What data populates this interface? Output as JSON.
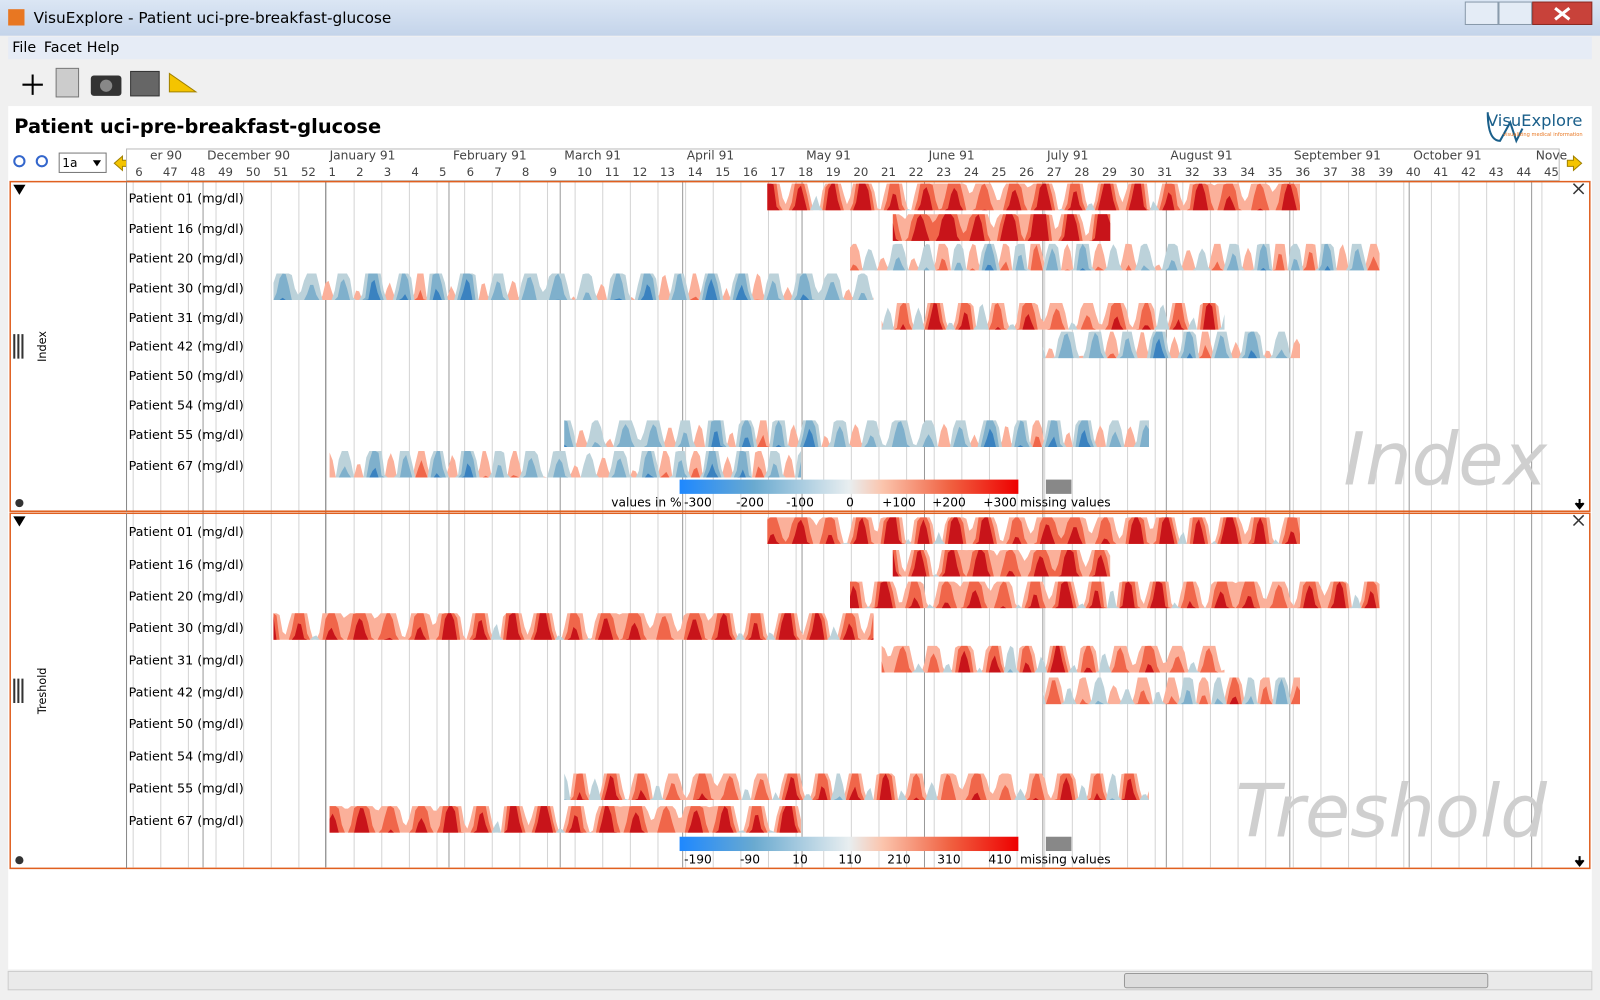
{
  "window": {
    "title": "VisuExplore - Patient uci-pre-breakfast-glucose"
  },
  "menu": [
    "File",
    "Facet",
    "Help"
  ],
  "toolbar": {
    "zoom_level": "1a"
  },
  "header": {
    "title": "Patient uci-pre-breakfast-glucose",
    "logo": "VisuExplore",
    "logo_tagline": "visualizing medical information"
  },
  "timeline": {
    "months": [
      "er 90",
      "December 90",
      "January 91",
      "February 91",
      "March 91",
      "April 91",
      "May 91",
      "June 91",
      "July 91",
      "August 91",
      "September 91",
      "October 91",
      "Nove"
    ],
    "weeks": [
      "6",
      "47",
      "48",
      "49",
      "50",
      "51",
      "52",
      "1",
      "2",
      "3",
      "4",
      "5",
      "6",
      "7",
      "8",
      "9",
      "10",
      "11",
      "12",
      "13",
      "14",
      "15",
      "16",
      "17",
      "18",
      "19",
      "20",
      "21",
      "22",
      "23",
      "24",
      "25",
      "26",
      "27",
      "28",
      "29",
      "30",
      "31",
      "32",
      "33",
      "34",
      "35",
      "36",
      "37",
      "38",
      "39",
      "40",
      "41",
      "42",
      "43",
      "44",
      "45"
    ]
  },
  "panels": [
    {
      "name": "Index",
      "rows": [
        "Patient 01 (mg/dl)",
        "Patient 16 (mg/dl)",
        "Patient 20 (mg/dl)",
        "Patient 30 (mg/dl)",
        "Patient 31 (mg/dl)",
        "Patient 42 (mg/dl)",
        "Patient 50 (mg/dl)",
        "Patient 54 (mg/dl)",
        "Patient 55 (mg/dl)",
        "Patient 67 (mg/dl)"
      ],
      "legend": [
        "values in %",
        "-300",
        "-200",
        "-100",
        "0",
        "+100",
        "+200",
        "+300",
        "missing values"
      ]
    },
    {
      "name": "Treshold",
      "rows": [
        "Patient 01 (mg/dl)",
        "Patient 16 (mg/dl)",
        "Patient 20 (mg/dl)",
        "Patient 30 (mg/dl)",
        "Patient 31 (mg/dl)",
        "Patient 42 (mg/dl)",
        "Patient 50 (mg/dl)",
        "Patient 54 (mg/dl)",
        "Patient 55 (mg/dl)",
        "Patient 67 (mg/dl)"
      ],
      "legend": [
        "-190",
        "-90",
        "10",
        "110",
        "210",
        "310",
        "410",
        "missing values"
      ]
    }
  ]
}
